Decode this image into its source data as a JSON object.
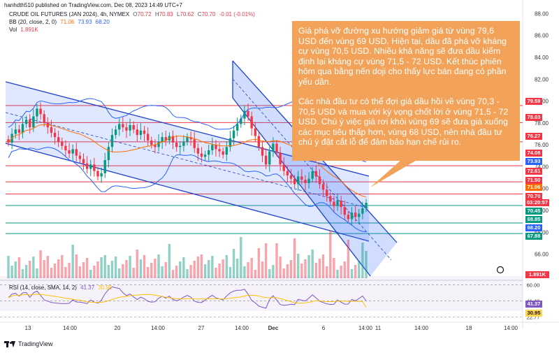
{
  "publisher_line": "hanhdth510 published on TradingView.com, Dec 08, 2023 14:49 UTC+7",
  "symbol": {
    "name": "CRUDE OIL FUTURES (JAN 2024), 4h, NYMEX",
    "open_label": "O",
    "open": "70.72",
    "high_label": "H",
    "high": "70.83",
    "low_label": "L",
    "low": "70.62",
    "close_label": "C",
    "close": "70.70",
    "change": "-0.01 (-0.01%)"
  },
  "bb": {
    "label": "BB (20, close, 2, 0)",
    "basis": "71.06",
    "upper": "73.93",
    "lower": "68.20"
  },
  "vol": {
    "label": "Vol",
    "value": "1.891K"
  },
  "rsi": {
    "label": "RSI (14, close, SMA, 14, 2)",
    "value": "41.37",
    "sma": "30.95"
  },
  "annotation": {
    "paragraph1": "Giá phá vỡ đường xu hướng giảm giá từ vùng 79,6 USD đến vùng 69 USD. Hiện tại, dầu đã phá vỡ kháng cự vùng 70,5 USD. Nhiều khả năng sẽ đưa dầu kiểm định lại kháng cự vùng 71,5 - 72 USD. Kết thúc phiên hôm qua bằng nến doji cho thấy lực bán đang có phần yếu dần.",
    "paragraph2": "Các nhà đầu tư có thể đợi giá dầu hồi về vùng 70,3 - 70,5 USD và mua với kỳ vọng chốt lời ở vùng 71,5 - 72 USD. Chú ý việc giá rơi khỏi vùng 69 sẽ đưa giá xuống các mục tiêu thấp hơn, vùng 68 USD, nên nhà đầu tư chú ý đặt cắt lỗ để đảm bảo hạn chế rủi ro."
  },
  "price_tags": [
    {
      "text": "79.59",
      "color": "#F23645"
    },
    {
      "text": "78.03",
      "color": "#F23645"
    },
    {
      "text": "76.27",
      "color": "#F23645"
    },
    {
      "text": "74.08",
      "color": "#F23645"
    },
    {
      "text": "73.93",
      "color": "#2962FF"
    },
    {
      "text": "72.61",
      "color": "#F23645"
    },
    {
      "text": "71.50",
      "color": "#F23645"
    },
    {
      "text": "71.06",
      "color": "#FF6D00"
    },
    {
      "text": "70.70",
      "color": "#F23645"
    },
    {
      "text": "03:20:57",
      "color": "#F23645"
    },
    {
      "text": "70.45",
      "color": "#089981"
    },
    {
      "text": "68.85",
      "color": "#089981"
    },
    {
      "text": "68.20",
      "color": "#2962FF"
    },
    {
      "text": "67.88",
      "color": "#089981"
    }
  ],
  "volume_tag": {
    "text": "1.891K",
    "color": "#F23645"
  },
  "rsi_tags": [
    {
      "text": "41.37",
      "color": "#7E57C2"
    },
    {
      "text": "30.95",
      "color": "#FFD54F"
    }
  ],
  "footer": {
    "brand": "TradingView"
  },
  "chart_data": {
    "type": "candlestick",
    "timeframe": "4h",
    "price_axis_ticks": [
      88.0,
      86.0,
      84.0,
      82.0,
      80.0,
      78.0,
      76.0,
      74.0,
      72.0,
      70.0,
      68.0,
      66.0,
      64.0
    ],
    "price_range": [
      63.8,
      88.6
    ],
    "time_axis_labels": [
      "13",
      "14:00",
      "20",
      "14:00",
      "27",
      "14:00",
      "Dec",
      "6",
      "14:00",
      "11",
      "14:00",
      "18",
      "14:00"
    ],
    "rsi_ticks": [
      60.0,
      41.49,
      22.77
    ],
    "rsi_range": [
      20,
      62
    ],
    "resistance_levels": [
      79.59,
      78.03,
      76.27,
      74.08,
      72.61,
      71.5
    ],
    "support_levels": [
      70.45,
      68.85,
      67.88
    ],
    "closes": [
      76.2,
      77.0,
      77.4,
      77.1,
      77.9,
      78.3,
      77.6,
      78.6,
      79.3,
      78.8,
      78.0,
      77.6,
      77.1,
      76.7,
      76.3,
      75.9,
      75.5,
      75.2,
      75.6,
      75.0,
      74.7,
      74.3,
      73.8,
      74.2,
      73.6,
      73.1,
      73.4,
      74.6,
      75.8,
      76.9,
      77.4,
      77.9,
      77.6,
      77.3,
      77.8,
      77.4,
      76.9,
      77.3,
      77.0,
      76.4,
      76.0,
      75.8,
      76.3,
      76.7,
      76.4,
      76.8,
      76.2,
      75.8,
      75.9,
      76.3,
      76.7,
      76.5,
      75.7,
      75.2,
      74.9,
      75.1,
      75.5,
      76.0,
      75.6,
      75.4,
      75.1,
      75.8,
      76.6,
      77.3,
      77.9,
      78.4,
      79.1,
      78.6,
      77.5,
      76.8,
      75.8,
      75.0,
      74.2,
      75.4,
      76.1,
      75.3,
      74.2,
      73.6,
      73.2,
      72.9,
      72.4,
      73.1,
      72.8,
      72.5,
      72.9,
      73.6,
      73.1,
      72.4,
      71.9,
      71.3,
      70.8,
      70.4,
      70.9,
      70.3,
      69.6,
      69.2,
      69.8,
      69.4,
      69.7,
      70.2,
      70.7
    ],
    "bb_basis": "71.06",
    "bb_upper": "73.93",
    "bb_lower": "68.20",
    "volume_last": "1.891K",
    "rsi_last": "41.37",
    "rsi_sma_last": "30.95"
  }
}
